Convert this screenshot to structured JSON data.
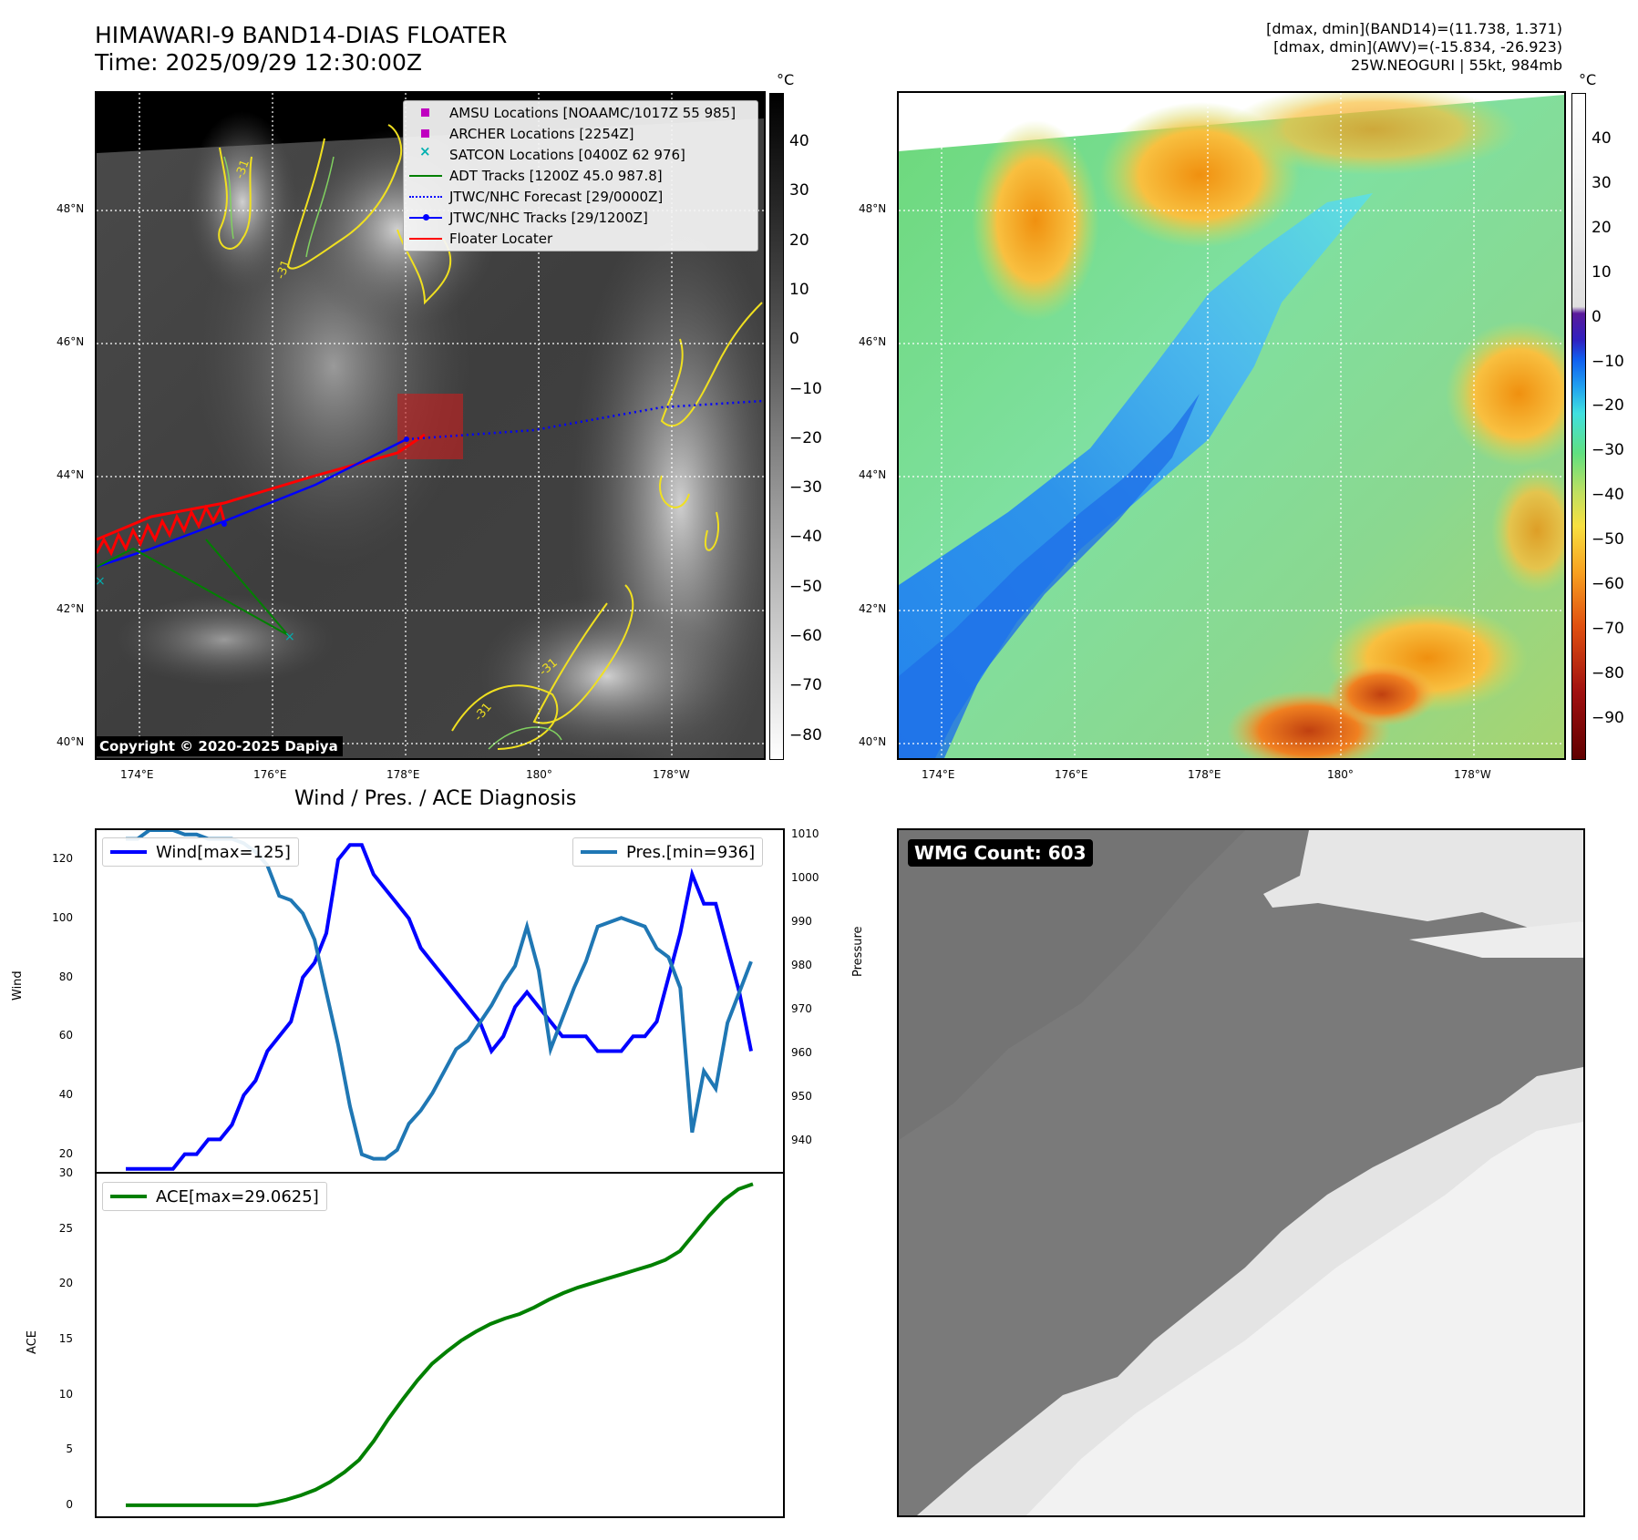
{
  "header": {
    "title_line1": "HIMAWARI-9 BAND14-DIAS FLOATER",
    "title_line2": "Time: 2025/09/29 12:30:00Z",
    "info_line1": "[dmax, dmin](BAND14)=(11.738, 1.371)",
    "info_line2": "[dmax, dmin](AWV)=(-15.834, -26.923)",
    "info_line3": "25W.NEOGURI | 55kt, 984mb"
  },
  "map": {
    "lat_labels": [
      "48°N",
      "46°N",
      "44°N",
      "42°N",
      "40°N"
    ],
    "lon_labels": [
      "174°E",
      "176°E",
      "178°E",
      "180°",
      "178°W"
    ],
    "unit": "°C",
    "contour_label": "-31",
    "copyright": "Copyright © 2020-2025 Dapiya"
  },
  "colorbar_left": {
    "ticks": [
      "40",
      "30",
      "20",
      "10",
      "0",
      "−10",
      "−20",
      "−30",
      "−40",
      "−50",
      "−60",
      "−70",
      "−80"
    ]
  },
  "colorbar_right": {
    "ticks": [
      "40",
      "30",
      "20",
      "10",
      "0",
      "−10",
      "−20",
      "−30",
      "−40",
      "−50",
      "−60",
      "−70",
      "−80",
      "−90"
    ]
  },
  "legend": {
    "items": [
      {
        "label": "AMSU Locations [NOAAMC/1017Z 55 985]",
        "color": "#c000c0"
      },
      {
        "label": "ARCHER Locations [2254Z]",
        "color": "#c000c0"
      },
      {
        "label": "SATCON Locations [0400Z 62 976]",
        "color": "#00b0b0"
      },
      {
        "label": "ADT Tracks [1200Z 45.0 987.8]",
        "color": "#008000"
      },
      {
        "label": "JTWC/NHC Forecast [29/0000Z]",
        "color": "#0000ff"
      },
      {
        "label": "JTWC/NHC Tracks [29/1200Z]",
        "color": "#0000ff"
      },
      {
        "label": "Floater Locater",
        "color": "#ff0000"
      }
    ]
  },
  "diag": {
    "title": "Wind / Pres. / ACE Diagnosis",
    "wind_legend": "Wind[max=125]",
    "pres_legend": "Pres.[min=936]",
    "ace_legend": "ACE[max=29.0625]",
    "wind_axis_label": "Wind",
    "pres_axis_label": "Pressure",
    "ace_axis_label": "ACE",
    "wind_ticks": [
      "120",
      "100",
      "80",
      "60",
      "40",
      "20"
    ],
    "pres_ticks": [
      "1010",
      "1000",
      "990",
      "980",
      "970",
      "960",
      "950",
      "940"
    ],
    "ace_ticks": [
      "30",
      "25",
      "20",
      "15",
      "10",
      "5",
      "0"
    ]
  },
  "wmg": {
    "label": "WMG Count: 603"
  },
  "chart_data": [
    {
      "type": "line",
      "title": "Wind / Pres. / ACE Diagnosis",
      "ylabel": "Wind",
      "y2label": "Pressure",
      "ylim": [
        14,
        130
      ],
      "y2lim": [
        933,
        1011
      ],
      "series": [
        {
          "name": "Wind[max=125]",
          "color": "#0000ff",
          "values": [
            15,
            15,
            15,
            15,
            15,
            20,
            20,
            25,
            25,
            30,
            40,
            45,
            55,
            60,
            65,
            80,
            85,
            95,
            120,
            125,
            125,
            115,
            110,
            105,
            100,
            90,
            85,
            80,
            75,
            70,
            65,
            55,
            60,
            70,
            75,
            70,
            65,
            60,
            60,
            60,
            55,
            55,
            55,
            60,
            60,
            65,
            80,
            95,
            115,
            105,
            105,
            90,
            75,
            55
          ]
        },
        {
          "name": "Pres.[min=936]",
          "color": "#1f77b4",
          "axis": "right",
          "values": [
            1009,
            1009,
            1011,
            1011,
            1011,
            1010,
            1010,
            1009,
            1009,
            1009,
            1008,
            1006,
            1003,
            996,
            995,
            992,
            986,
            974,
            962,
            948,
            937,
            936,
            936,
            938,
            944,
            947,
            951,
            956,
            961,
            963,
            967,
            971,
            976,
            980,
            989,
            979,
            961,
            968,
            975,
            981,
            989,
            990,
            991,
            990,
            989,
            984,
            982,
            975,
            942,
            956,
            952,
            967,
            974,
            981
          ]
        }
      ]
    },
    {
      "type": "line",
      "ylabel": "ACE",
      "ylim": [
        -1,
        30
      ],
      "series": [
        {
          "name": "ACE[max=29.0625]",
          "color": "#008000",
          "values": [
            0,
            0,
            0,
            0,
            0,
            0,
            0,
            0,
            0,
            0,
            0.2,
            0.5,
            0.9,
            1.4,
            2.1,
            3.0,
            4.1,
            5.8,
            7.8,
            9.6,
            11.3,
            12.8,
            13.9,
            14.9,
            15.7,
            16.4,
            16.9,
            17.3,
            17.9,
            18.6,
            19.2,
            19.7,
            20.1,
            20.5,
            20.9,
            21.3,
            21.7,
            22.2,
            23.0,
            24.6,
            26.2,
            27.6,
            28.6,
            29.0625
          ]
        }
      ]
    }
  ]
}
